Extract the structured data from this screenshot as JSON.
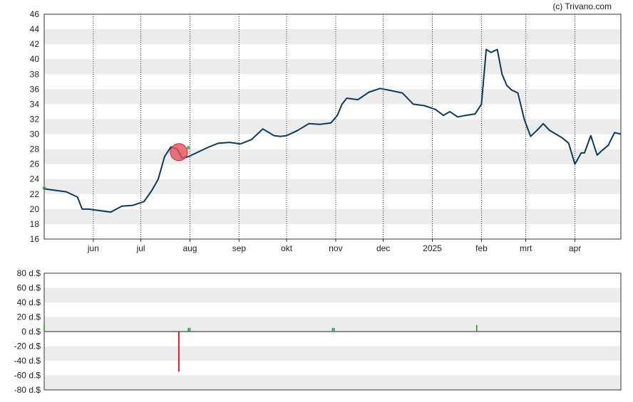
{
  "credit": "(c) Trivano.com",
  "colors": {
    "price_line": "#0d3a5c",
    "band": "#ececec",
    "grid": "#333333",
    "marker": "#e8505b",
    "buy": "#2e8b3c",
    "sell": "#d0202e"
  },
  "chart_data": [
    {
      "type": "line",
      "x_tick_labels": [
        "jun",
        "jul",
        "aug",
        "sep",
        "okt",
        "nov",
        "dec",
        "2025",
        "feb",
        "mrt",
        "apr"
      ],
      "y_tick_labels": [
        "16",
        "18",
        "20",
        "22",
        "24",
        "26",
        "28",
        "30",
        "32",
        "34",
        "36",
        "38",
        "40",
        "42",
        "44",
        "46"
      ],
      "ylim": [
        16,
        46
      ],
      "series": [
        {
          "x": [
            "2024-05-01",
            "2024-05-08",
            "2024-05-15",
            "2024-05-22",
            "2024-05-25",
            "2024-05-29",
            "2024-06-05",
            "2024-06-12",
            "2024-06-19",
            "2024-06-26",
            "2024-07-03",
            "2024-07-08",
            "2024-07-12",
            "2024-07-16",
            "2024-07-20",
            "2024-07-24",
            "2024-07-27",
            "2024-07-31",
            "2024-08-05",
            "2024-08-12",
            "2024-08-19",
            "2024-08-26",
            "2024-09-02",
            "2024-09-09",
            "2024-09-16",
            "2024-09-23",
            "2024-09-27",
            "2024-10-01",
            "2024-10-08",
            "2024-10-15",
            "2024-10-22",
            "2024-10-29",
            "2024-11-02",
            "2024-11-05",
            "2024-11-08",
            "2024-11-15",
            "2024-11-22",
            "2024-11-29",
            "2024-12-06",
            "2024-12-13",
            "2024-12-20",
            "2024-12-27",
            "2025-01-03",
            "2025-01-08",
            "2025-01-12",
            "2025-01-17",
            "2025-01-22",
            "2025-01-28",
            "2025-02-01",
            "2025-02-04",
            "2025-02-07",
            "2025-02-11",
            "2025-02-14",
            "2025-02-17",
            "2025-02-20",
            "2025-02-24",
            "2025-02-28",
            "2025-03-04",
            "2025-03-08",
            "2025-03-12",
            "2025-03-16",
            "2025-03-20",
            "2025-03-24",
            "2025-03-28",
            "2025-04-01",
            "2025-04-05",
            "2025-04-07",
            "2025-04-11",
            "2025-04-15",
            "2025-04-18",
            "2025-04-22",
            "2025-04-26",
            "2025-04-30"
          ],
          "y": [
            22.7,
            22.5,
            22.3,
            21.6,
            20.0,
            20.0,
            19.8,
            19.6,
            20.4,
            20.5,
            21.0,
            22.5,
            24.0,
            27.0,
            28.3,
            28.0,
            26.8,
            27.0,
            27.5,
            28.2,
            28.8,
            28.9,
            28.7,
            29.3,
            30.7,
            29.8,
            29.7,
            29.8,
            30.5,
            31.4,
            31.3,
            31.5,
            32.5,
            34.0,
            34.8,
            34.6,
            35.6,
            36.1,
            35.8,
            35.5,
            34.0,
            33.8,
            33.3,
            32.5,
            33.0,
            32.3,
            32.5,
            32.7,
            34.0,
            41.3,
            40.9,
            41.3,
            38.0,
            36.5,
            35.9,
            35.5,
            32.0,
            29.7,
            30.5,
            31.4,
            30.5,
            30.0,
            29.5,
            28.8,
            26.0,
            27.5,
            27.5,
            29.8,
            27.2,
            27.8,
            28.5,
            30.2,
            30.0
          ]
        }
      ]
    },
    {
      "type": "bar",
      "y_tick_labels": [
        "80 d.$",
        "60 d.$",
        "40 d.$",
        "20 d.$",
        "0 d.$",
        "-20 d.$",
        "-40 d.$",
        "-60 d.$",
        "-80 d.$"
      ],
      "ylim": [
        -80,
        80
      ],
      "series": [
        {
          "x": [
            "2024-05-01",
            "2024-07-22",
            "2024-07-25",
            "2024-07-31",
            "2024-08-01",
            "2024-10-30",
            "2024-10-31",
            "2025-01-29"
          ],
          "values": [
            10,
            1,
            -55,
            5,
            5,
            5,
            5,
            9
          ]
        }
      ]
    }
  ]
}
